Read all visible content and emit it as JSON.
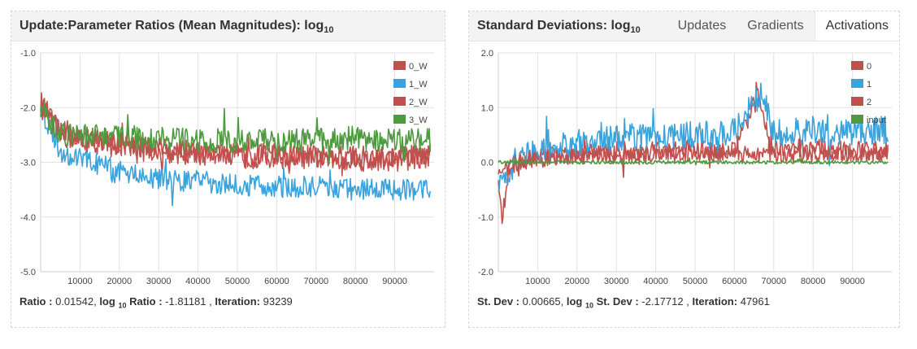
{
  "left_panel": {
    "title": "Update:Parameter Ratios (Mean Magnitudes): log",
    "title_sub": "10",
    "readout": {
      "ratio_label": "Ratio :",
      "ratio_value": "0.01542,",
      "log_label": "log",
      "log_sub": "10",
      "log_ratio_label": "Ratio :",
      "log_ratio_value": "-1.81181 ,",
      "iteration_label": "Iteration:",
      "iteration_value": "93239"
    }
  },
  "right_panel": {
    "title": "Standard Deviations: log",
    "title_sub": "10",
    "tabs": [
      {
        "label": "Updates",
        "active": false
      },
      {
        "label": "Gradients",
        "active": false
      },
      {
        "label": "Activations",
        "active": true
      }
    ],
    "readout": {
      "std_label": "St. Dev :",
      "std_value": "0.00665,",
      "log_label": "log",
      "log_sub": "10",
      "log_std_label": "St. Dev :",
      "log_std_value": "-2.17712 ,",
      "iteration_label": "Iteration:",
      "iteration_value": "47961"
    }
  },
  "chart_data": [
    {
      "type": "line",
      "ylim": [
        -5.0,
        -1.0
      ],
      "xlim": [
        0,
        100000
      ],
      "y_ticks": [
        "-1.0",
        "-2.0",
        "-3.0",
        "-4.0",
        "-5.0"
      ],
      "y_tick_values": [
        -1.0,
        -2.0,
        -3.0,
        -4.0,
        -5.0
      ],
      "x_ticks": [
        "10000",
        "20000",
        "30000",
        "40000",
        "50000",
        "60000",
        "70000",
        "80000",
        "90000"
      ],
      "x_tick_values": [
        10000,
        20000,
        30000,
        40000,
        50000,
        60000,
        70000,
        80000,
        90000
      ],
      "legend_position": "top-right",
      "grid": true,
      "series": [
        {
          "name": "0_W",
          "color": "#c0504d",
          "x": [
            0,
            5000,
            10000,
            20000,
            30000,
            40000,
            50000,
            60000,
            70000,
            80000,
            90000,
            99000
          ],
          "y": [
            -1.9,
            -2.5,
            -2.6,
            -2.7,
            -2.8,
            -2.85,
            -2.9,
            -2.9,
            -2.9,
            -2.95,
            -2.95,
            -2.9
          ]
        },
        {
          "name": "1_W",
          "color": "#3ba3dc",
          "x": [
            0,
            5000,
            10000,
            20000,
            30000,
            40000,
            50000,
            60000,
            70000,
            80000,
            90000,
            99000
          ],
          "y": [
            -2.0,
            -2.8,
            -2.95,
            -3.15,
            -3.3,
            -3.35,
            -3.4,
            -3.45,
            -3.45,
            -3.5,
            -3.5,
            -3.5
          ]
        },
        {
          "name": "2_W",
          "color": "#c0504d",
          "x": [
            0,
            5000,
            10000,
            20000,
            30000,
            40000,
            50000,
            60000,
            70000,
            80000,
            90000,
            99000
          ],
          "y": [
            -2.0,
            -2.4,
            -2.55,
            -2.65,
            -2.75,
            -2.8,
            -2.85,
            -2.85,
            -2.9,
            -2.9,
            -2.9,
            -2.85
          ]
        },
        {
          "name": "3_W",
          "color": "#4e9a3f",
          "x": [
            0,
            5000,
            10000,
            20000,
            30000,
            40000,
            50000,
            60000,
            70000,
            80000,
            90000,
            99000
          ],
          "y": [
            -2.0,
            -2.5,
            -2.5,
            -2.55,
            -2.55,
            -2.6,
            -2.6,
            -2.6,
            -2.6,
            -2.55,
            -2.6,
            -2.6
          ]
        }
      ]
    },
    {
      "type": "line",
      "ylim": [
        -2.0,
        2.0
      ],
      "xlim": [
        0,
        100000
      ],
      "y_ticks": [
        "2.0",
        "1.0",
        "0.0",
        "-1.0",
        "-2.0"
      ],
      "y_tick_values": [
        2.0,
        1.0,
        0.0,
        -1.0,
        -2.0
      ],
      "x_ticks": [
        "10000",
        "20000",
        "30000",
        "40000",
        "50000",
        "60000",
        "70000",
        "80000",
        "90000"
      ],
      "x_tick_values": [
        10000,
        20000,
        30000,
        40000,
        50000,
        60000,
        70000,
        80000,
        90000
      ],
      "legend_position": "top-right",
      "grid": true,
      "series": [
        {
          "name": "0",
          "color": "#c0504d",
          "x": [
            0,
            1000,
            3000,
            10000,
            20000,
            30000,
            40000,
            50000,
            60000,
            66000,
            70000,
            80000,
            90000,
            99000
          ],
          "y": [
            -0.3,
            -1.0,
            0.0,
            0.1,
            0.15,
            0.2,
            0.2,
            0.25,
            0.25,
            1.2,
            0.25,
            0.25,
            0.2,
            0.2
          ]
        },
        {
          "name": "1",
          "color": "#3ba3dc",
          "x": [
            0,
            5000,
            10000,
            20000,
            30000,
            40000,
            50000,
            60000,
            67000,
            70000,
            80000,
            90000,
            99000
          ],
          "y": [
            -0.5,
            0.1,
            0.2,
            0.35,
            0.45,
            0.5,
            0.5,
            0.55,
            1.3,
            0.55,
            0.6,
            0.55,
            0.6
          ]
        },
        {
          "name": "2",
          "color": "#c0504d",
          "x": [
            0,
            5000,
            10000,
            20000,
            30000,
            40000,
            50000,
            60000,
            70000,
            80000,
            90000,
            99000
          ],
          "y": [
            -0.2,
            0.0,
            0.05,
            0.1,
            0.1,
            0.15,
            0.15,
            0.15,
            0.15,
            0.15,
            0.15,
            0.15
          ]
        },
        {
          "name": "input",
          "color": "#4e9a3f",
          "x": [
            0,
            10000,
            20000,
            30000,
            40000,
            50000,
            60000,
            70000,
            80000,
            90000,
            99000
          ],
          "y": [
            0.0,
            0.0,
            0.0,
            0.0,
            0.0,
            0.0,
            0.0,
            0.0,
            0.0,
            0.0,
            0.0
          ]
        }
      ]
    }
  ]
}
